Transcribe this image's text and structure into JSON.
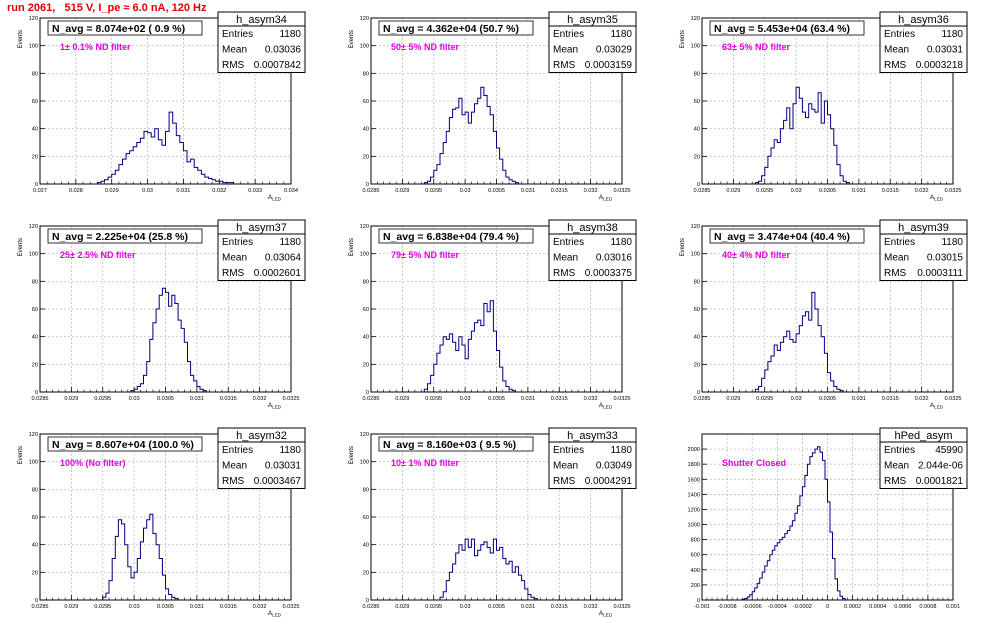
{
  "page": {
    "title": "run 2061,   515 V, I_pe ≈ 6.0 nA, 120 Hz"
  },
  "colors": {
    "title": "#e00000",
    "histogram": "#000080",
    "annotation": "#e000e0",
    "grid": "#b4b4b4",
    "frame": "#000000"
  },
  "chart_data": [
    {
      "type": "bar",
      "name": "h_asym34",
      "header": "N_avg = 8.074e+02 ( 0.9 %)",
      "annotation": "1± 0.1% ND filter",
      "stats": [
        [
          "Entries",
          "1180"
        ],
        [
          "Mean",
          "0.03036"
        ],
        [
          "RMS",
          "0.0007842"
        ]
      ],
      "ylabel": "Events",
      "xlabel": "A_LED",
      "xlim": [
        0.027,
        0.034
      ],
      "ylim": [
        0,
        120
      ],
      "xticks": [
        0.027,
        0.028,
        0.029,
        0.03,
        0.031,
        0.032,
        0.033,
        0.034
      ],
      "xticklabels": [
        "0.027",
        "0.028",
        "0.029",
        "0.03",
        "0.031",
        "0.032",
        "0.033",
        "0.034"
      ],
      "yticks": [
        0,
        20,
        40,
        60,
        80,
        100,
        120
      ],
      "bin_start": 0.0286,
      "bin_width": 0.0001,
      "values": [
        1,
        2,
        3,
        5,
        7,
        10,
        14,
        18,
        22,
        24,
        27,
        30,
        33,
        38,
        37,
        34,
        40,
        32,
        28,
        38,
        52,
        44,
        35,
        30,
        24,
        16,
        18,
        12,
        10,
        7,
        5,
        4,
        3,
        2,
        2,
        1,
        1,
        1
      ]
    },
    {
      "type": "bar",
      "name": "h_asym35",
      "header": "N_avg = 4.362e+04 (50.7 %)",
      "annotation": "50± 5% ND filter",
      "stats": [
        [
          "Entries",
          "1180"
        ],
        [
          "Mean",
          "0.03029"
        ],
        [
          "RMS",
          "0.0003159"
        ]
      ],
      "ylabel": "Events",
      "xlabel": "A_LED",
      "xlim": [
        0.0285,
        0.0325
      ],
      "ylim": [
        0,
        120
      ],
      "xticks": [
        0.0285,
        0.029,
        0.0295,
        0.03,
        0.0305,
        0.031,
        0.0315,
        0.032,
        0.0325
      ],
      "xticklabels": [
        "0.0285",
        "0.029",
        "0.0295",
        "0.03",
        "0.0305",
        "0.031",
        "0.0315",
        "0.032",
        "0.0325"
      ],
      "yticks": [
        0,
        20,
        40,
        60,
        80,
        100,
        120
      ],
      "bin_start": 0.02935,
      "bin_width": 5e-05,
      "values": [
        1,
        2,
        5,
        10,
        14,
        22,
        30,
        38,
        48,
        54,
        55,
        62,
        50,
        52,
        44,
        52,
        58,
        62,
        70,
        64,
        56,
        50,
        38,
        26,
        18,
        10,
        5,
        3,
        2,
        1
      ]
    },
    {
      "type": "bar",
      "name": "h_asym36",
      "header": "N_avg = 5.453e+04 (63.4 %)",
      "annotation": "63± 5% ND filter",
      "stats": [
        [
          "Entries",
          "1180"
        ],
        [
          "Mean",
          "0.03031"
        ],
        [
          "RMS",
          "0.0003218"
        ]
      ],
      "ylabel": "Events",
      "xlabel": "A_LED",
      "xlim": [
        0.0285,
        0.0325
      ],
      "ylim": [
        0,
        120
      ],
      "xticks": [
        0.0285,
        0.029,
        0.0295,
        0.03,
        0.0305,
        0.031,
        0.0315,
        0.032,
        0.0325
      ],
      "xticklabels": [
        "0.0285",
        "0.029",
        "0.0295",
        "0.03",
        "0.0305",
        "0.031",
        "0.0315",
        "0.032",
        "0.0325"
      ],
      "yticks": [
        0,
        20,
        40,
        60,
        80,
        100,
        120
      ],
      "bin_start": 0.02935,
      "bin_width": 5e-05,
      "values": [
        1,
        2,
        6,
        12,
        20,
        26,
        32,
        30,
        40,
        46,
        55,
        40,
        58,
        70,
        62,
        52,
        48,
        58,
        54,
        52,
        66,
        44,
        60,
        50,
        40,
        28,
        14,
        6,
        2,
        1
      ]
    },
    {
      "type": "bar",
      "name": "h_asym37",
      "header": "N_avg = 2.225e+04 (25.8 %)",
      "annotation": "25± 2.5% ND filter",
      "stats": [
        [
          "Entries",
          "1180"
        ],
        [
          "Mean",
          "0.03064"
        ],
        [
          "RMS",
          "0.0002601"
        ]
      ],
      "ylabel": "Events",
      "xlabel": "A_LED",
      "xlim": [
        0.0285,
        0.0325
      ],
      "ylim": [
        0,
        120
      ],
      "xticks": [
        0.0285,
        0.029,
        0.0295,
        0.03,
        0.0305,
        0.031,
        0.0315,
        0.032,
        0.0325
      ],
      "xticklabels": [
        "0.0285",
        "0.029",
        "0.0295",
        "0.03",
        "0.0305",
        "0.031",
        "0.0315",
        "0.032",
        "0.0325"
      ],
      "yticks": [
        0,
        20,
        40,
        60,
        80,
        100,
        120
      ],
      "bin_start": 0.02995,
      "bin_width": 5e-05,
      "values": [
        1,
        2,
        4,
        6,
        12,
        22,
        38,
        50,
        60,
        70,
        75,
        72,
        62,
        70,
        64,
        52,
        46,
        36,
        22,
        12,
        8,
        4,
        2,
        1
      ]
    },
    {
      "type": "bar",
      "name": "h_asym38",
      "header": "N_avg = 6.838e+04 (79.4 %)",
      "annotation": "79± 5% ND filter",
      "stats": [
        [
          "Entries",
          "1180"
        ],
        [
          "Mean",
          "0.03016"
        ],
        [
          "RMS",
          "0.0003375"
        ]
      ],
      "ylabel": "Events",
      "xlabel": "A_LED",
      "xlim": [
        0.0285,
        0.0325
      ],
      "ylim": [
        0,
        120
      ],
      "xticks": [
        0.0285,
        0.029,
        0.0295,
        0.03,
        0.0305,
        0.031,
        0.0315,
        0.032,
        0.0325
      ],
      "xticklabels": [
        "0.0285",
        "0.029",
        "0.0295",
        "0.03",
        "0.0305",
        "0.031",
        "0.0315",
        "0.032",
        "0.0325"
      ],
      "yticks": [
        0,
        20,
        40,
        60,
        80,
        100,
        120
      ],
      "bin_start": 0.02935,
      "bin_width": 5e-05,
      "values": [
        2,
        6,
        12,
        20,
        28,
        34,
        40,
        38,
        42,
        36,
        30,
        40,
        34,
        24,
        38,
        44,
        50,
        52,
        48,
        64,
        58,
        66,
        44,
        30,
        18,
        8,
        4,
        2,
        1
      ]
    },
    {
      "type": "bar",
      "name": "h_asym39",
      "header": "N_avg = 3.474e+04 (40.4 %)",
      "annotation": "40± 4% ND filter",
      "stats": [
        [
          "Entries",
          "1180"
        ],
        [
          "Mean",
          "0.03015"
        ],
        [
          "RMS",
          "0.0003111"
        ]
      ],
      "ylabel": "Events",
      "xlabel": "A_LED",
      "xlim": [
        0.0285,
        0.0325
      ],
      "ylim": [
        0,
        120
      ],
      "xticks": [
        0.0285,
        0.029,
        0.0295,
        0.03,
        0.0305,
        0.031,
        0.0315,
        0.032,
        0.0325
      ],
      "xticklabels": [
        "0.0285",
        "0.029",
        "0.0295",
        "0.03",
        "0.0305",
        "0.031",
        "0.0315",
        "0.032",
        "0.0325"
      ],
      "yticks": [
        0,
        20,
        40,
        60,
        80,
        100,
        120
      ],
      "bin_start": 0.02935,
      "bin_width": 5e-05,
      "values": [
        2,
        4,
        10,
        16,
        22,
        26,
        34,
        30,
        36,
        40,
        44,
        38,
        36,
        42,
        48,
        55,
        58,
        52,
        72,
        60,
        48,
        40,
        28,
        14,
        8,
        4,
        2,
        1
      ]
    },
    {
      "type": "bar",
      "name": "h_asym32",
      "header": "N_avg = 8.607e+04 (100.0 %)",
      "annotation": "100% (No filter)",
      "stats": [
        [
          "Entries",
          "1180"
        ],
        [
          "Mean",
          "0.03031"
        ],
        [
          "RMS",
          "0.0003467"
        ]
      ],
      "ylabel": "Events",
      "xlabel": "A_LED",
      "xlim": [
        0.0285,
        0.0325
      ],
      "ylim": [
        0,
        120
      ],
      "xticks": [
        0.0285,
        0.029,
        0.0295,
        0.03,
        0.0305,
        0.031,
        0.0315,
        0.032,
        0.0325
      ],
      "xticklabels": [
        "0.0285",
        "0.029",
        "0.0295",
        "0.03",
        "0.0305",
        "0.031",
        "0.0315",
        "0.032",
        "0.0325"
      ],
      "yticks": [
        0,
        20,
        40,
        60,
        80,
        100,
        120
      ],
      "bin_start": 0.0295,
      "bin_width": 5e-05,
      "values": [
        2,
        5,
        14,
        30,
        46,
        58,
        55,
        40,
        24,
        16,
        20,
        30,
        42,
        52,
        58,
        62,
        48,
        40,
        30,
        18,
        8,
        4,
        2,
        1
      ]
    },
    {
      "type": "bar",
      "name": "h_asym33",
      "header": "N_avg = 8.160e+03 ( 9.5 %)",
      "annotation": "10± 1% ND filter",
      "stats": [
        [
          "Entries",
          "1180"
        ],
        [
          "Mean",
          "0.03049"
        ],
        [
          "RMS",
          "0.0004291"
        ]
      ],
      "ylabel": "Events",
      "xlabel": "A_LED",
      "xlim": [
        0.0285,
        0.0325
      ],
      "ylim": [
        0,
        120
      ],
      "xticks": [
        0.0285,
        0.029,
        0.0295,
        0.03,
        0.0305,
        0.031,
        0.0315,
        0.032,
        0.0325
      ],
      "xticklabels": [
        "0.0285",
        "0.029",
        "0.0295",
        "0.03",
        "0.0305",
        "0.031",
        "0.0315",
        "0.032",
        "0.0325"
      ],
      "yticks": [
        0,
        20,
        40,
        60,
        80,
        100,
        120
      ],
      "bin_start": 0.0296,
      "bin_width": 5e-05,
      "values": [
        2,
        6,
        14,
        20,
        26,
        34,
        40,
        36,
        44,
        38,
        44,
        32,
        36,
        40,
        42,
        38,
        34,
        44,
        36,
        38,
        30,
        26,
        28,
        20,
        24,
        18,
        14,
        8,
        4,
        2,
        1
      ]
    },
    {
      "type": "bar",
      "name": "hPed_asym",
      "header": "",
      "annotation": "Shutter Closed",
      "stats": [
        [
          "Entries",
          "45990"
        ],
        [
          "Mean",
          "2.044e-06"
        ],
        [
          "RMS",
          "0.0001821"
        ]
      ],
      "ylabel": "",
      "xlabel": "",
      "xlim": [
        -0.001,
        0.001
      ],
      "ylim": [
        0,
        2200
      ],
      "xticks": [
        -0.001,
        -0.0008,
        -0.0006,
        -0.0004,
        -0.0002,
        0,
        0.0002,
        0.0004,
        0.0006,
        0.0008,
        0.001
      ],
      "xticklabels": [
        "-0.001",
        "-0.0008",
        "-0.0006",
        "-0.0004",
        "-0.0002",
        "0",
        "0.0002",
        "0.0004",
        "0.0006",
        "0.0008",
        "0.001"
      ],
      "yticks": [
        0,
        200,
        400,
        600,
        800,
        1000,
        1200,
        1400,
        1600,
        1800,
        2000
      ],
      "bin_start": -0.00068,
      "bin_width": 2e-05,
      "values": [
        10,
        20,
        40,
        70,
        110,
        160,
        220,
        290,
        370,
        450,
        520,
        600,
        660,
        720,
        760,
        800,
        830,
        880,
        920,
        980,
        1050,
        1150,
        1250,
        1380,
        1500,
        1650,
        1800,
        1900,
        1950,
        2000,
        2030,
        1960,
        1850,
        1600,
        1300,
        900,
        550,
        280,
        120,
        50,
        20
      ]
    }
  ]
}
